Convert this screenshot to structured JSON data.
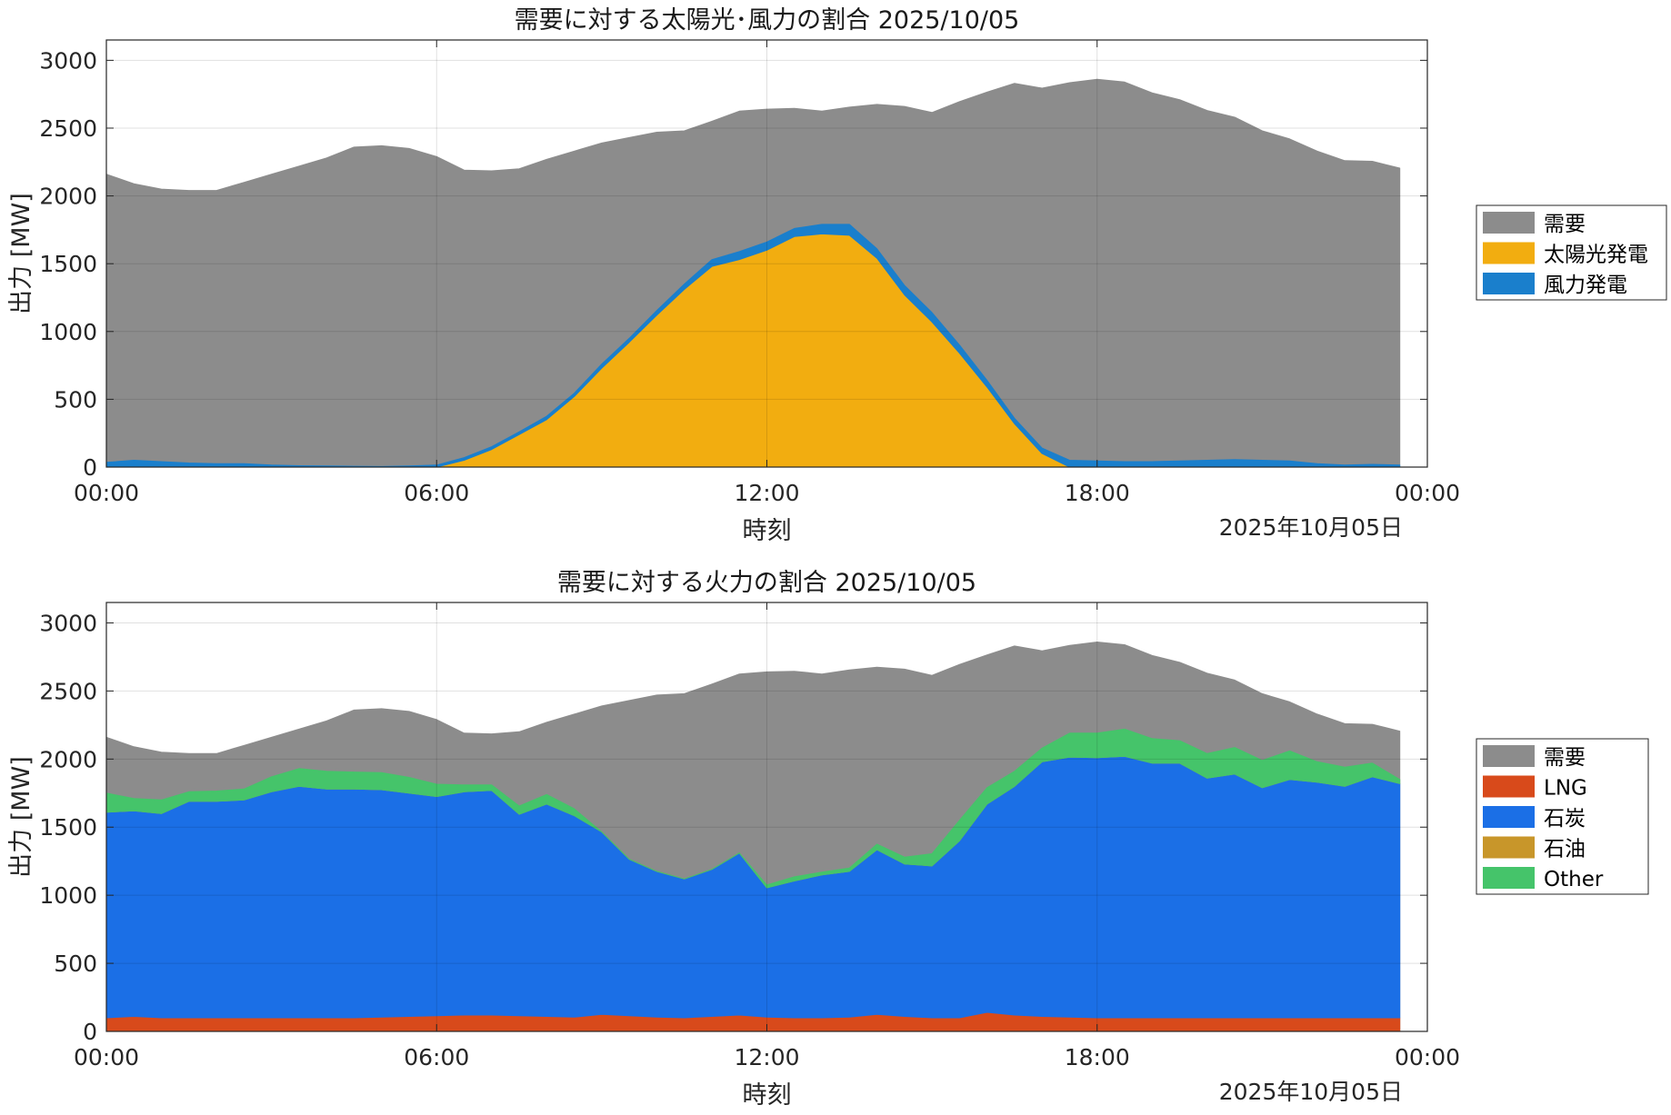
{
  "chart_data": [
    {
      "type": "area",
      "title": "需要に対する太陽光･風力の割合 2025/10/05",
      "xlabel": "時刻",
      "x_date_label": "2025年10月05日",
      "ylabel": "出力 [MW]",
      "ylim": [
        0,
        3150
      ],
      "yticks": [
        0,
        500,
        1000,
        1500,
        2000,
        2500,
        3000
      ],
      "xlim_hours": [
        0,
        24
      ],
      "xticks": [
        "00:00",
        "06:00",
        "12:00",
        "18:00",
        "00:00"
      ],
      "grid": true,
      "legend_position": "right",
      "x": [
        "00:00",
        "00:30",
        "01:00",
        "01:30",
        "02:00",
        "02:30",
        "03:00",
        "03:30",
        "04:00",
        "04:30",
        "05:00",
        "05:30",
        "06:00",
        "06:30",
        "07:00",
        "07:30",
        "08:00",
        "08:30",
        "09:00",
        "09:30",
        "10:00",
        "10:30",
        "11:00",
        "11:30",
        "12:00",
        "12:30",
        "13:00",
        "13:30",
        "14:00",
        "14:30",
        "15:00",
        "15:30",
        "16:00",
        "16:30",
        "17:00",
        "17:30",
        "18:00",
        "18:30",
        "19:00",
        "19:30",
        "20:00",
        "20:30",
        "21:00",
        "21:30",
        "22:00",
        "22:30",
        "23:00",
        "23:30"
      ],
      "series": [
        {
          "name": "需要",
          "color": "#8c8c8c",
          "mode": "overlay",
          "values": [
            2160,
            2090,
            2050,
            2040,
            2040,
            2100,
            2160,
            2220,
            2280,
            2360,
            2370,
            2350,
            2290,
            2190,
            2185,
            2200,
            2270,
            2330,
            2390,
            2430,
            2470,
            2480,
            2550,
            2625,
            2640,
            2645,
            2625,
            2655,
            2675,
            2660,
            2615,
            2695,
            2765,
            2830,
            2795,
            2835,
            2860,
            2840,
            2760,
            2710,
            2630,
            2580,
            2480,
            2420,
            2330,
            2260,
            2255,
            2205
          ]
        },
        {
          "name": "太陽光発電",
          "color": "#f2ad10",
          "mode": "stack",
          "values": [
            0,
            0,
            0,
            0,
            0,
            0,
            0,
            0,
            0,
            0,
            0,
            0,
            0,
            50,
            130,
            240,
            350,
            520,
            730,
            920,
            1120,
            1310,
            1480,
            1530,
            1600,
            1700,
            1720,
            1710,
            1540,
            1270,
            1070,
            840,
            590,
            320,
            100,
            0,
            0,
            0,
            0,
            0,
            0,
            0,
            0,
            0,
            0,
            0,
            0,
            0
          ]
        },
        {
          "name": "風力発電",
          "color": "#1a7fcc",
          "mode": "stack",
          "values": [
            35,
            50,
            40,
            30,
            25,
            25,
            15,
            10,
            8,
            6,
            4,
            8,
            15,
            20,
            20,
            20,
            25,
            25,
            30,
            30,
            35,
            40,
            50,
            60,
            60,
            60,
            70,
            80,
            70,
            70,
            70,
            60,
            50,
            40,
            40,
            50,
            45,
            40,
            40,
            45,
            50,
            55,
            50,
            45,
            25,
            15,
            20,
            15
          ]
        }
      ]
    },
    {
      "type": "area",
      "title": "需要に対する火力の割合 2025/10/05",
      "xlabel": "時刻",
      "x_date_label": "2025年10月05日",
      "ylabel": "出力 [MW]",
      "ylim": [
        0,
        3150
      ],
      "yticks": [
        0,
        500,
        1000,
        1500,
        2000,
        2500,
        3000
      ],
      "xlim_hours": [
        0,
        24
      ],
      "xticks": [
        "00:00",
        "06:00",
        "12:00",
        "18:00",
        "00:00"
      ],
      "grid": true,
      "legend_position": "right",
      "x": [
        "00:00",
        "00:30",
        "01:00",
        "01:30",
        "02:00",
        "02:30",
        "03:00",
        "03:30",
        "04:00",
        "04:30",
        "05:00",
        "05:30",
        "06:00",
        "06:30",
        "07:00",
        "07:30",
        "08:00",
        "08:30",
        "09:00",
        "09:30",
        "10:00",
        "10:30",
        "11:00",
        "11:30",
        "12:00",
        "12:30",
        "13:00",
        "13:30",
        "14:00",
        "14:30",
        "15:00",
        "15:30",
        "16:00",
        "16:30",
        "17:00",
        "17:30",
        "18:00",
        "18:30",
        "19:00",
        "19:30",
        "20:00",
        "20:30",
        "21:00",
        "21:30",
        "22:00",
        "22:30",
        "23:00",
        "23:30"
      ],
      "series": [
        {
          "name": "需要",
          "color": "#8c8c8c",
          "mode": "overlay",
          "values": [
            2160,
            2090,
            2050,
            2040,
            2040,
            2100,
            2160,
            2220,
            2280,
            2360,
            2370,
            2350,
            2290,
            2190,
            2185,
            2200,
            2270,
            2330,
            2390,
            2430,
            2470,
            2480,
            2550,
            2625,
            2640,
            2645,
            2625,
            2655,
            2675,
            2660,
            2615,
            2695,
            2765,
            2830,
            2795,
            2835,
            2860,
            2840,
            2760,
            2710,
            2630,
            2580,
            2480,
            2420,
            2330,
            2260,
            2255,
            2205
          ]
        },
        {
          "name": "LNG",
          "color": "#d84a1b",
          "mode": "stack",
          "values": [
            100,
            110,
            100,
            100,
            100,
            100,
            100,
            100,
            100,
            100,
            105,
            110,
            115,
            120,
            120,
            115,
            110,
            105,
            125,
            115,
            105,
            100,
            110,
            120,
            105,
            100,
            100,
            105,
            125,
            110,
            100,
            100,
            140,
            120,
            110,
            105,
            100,
            100,
            100,
            100,
            100,
            100,
            100,
            100,
            100,
            100,
            100,
            100
          ]
        },
        {
          "name": "石炭",
          "color": "#1b6fe6",
          "mode": "stack",
          "values": [
            1510,
            1510,
            1500,
            1590,
            1590,
            1600,
            1660,
            1700,
            1680,
            1680,
            1670,
            1640,
            1610,
            1640,
            1650,
            1480,
            1560,
            1480,
            1340,
            1150,
            1070,
            1020,
            1080,
            1190,
            950,
            1005,
            1050,
            1070,
            1210,
            1120,
            1115,
            1300,
            1530,
            1680,
            1870,
            1910,
            1910,
            1920,
            1870,
            1870,
            1760,
            1790,
            1690,
            1750,
            1730,
            1700,
            1770,
            1720
          ]
        },
        {
          "name": "石油",
          "color": "#c8962a",
          "mode": "stack",
          "values": [
            0,
            0,
            0,
            0,
            0,
            0,
            0,
            0,
            0,
            0,
            0,
            0,
            0,
            0,
            0,
            0,
            0,
            0,
            0,
            0,
            0,
            0,
            0,
            0,
            0,
            0,
            0,
            0,
            0,
            0,
            0,
            0,
            0,
            0,
            0,
            0,
            0,
            0,
            0,
            0,
            0,
            0,
            0,
            0,
            0,
            0,
            0,
            0
          ]
        },
        {
          "name": "Other",
          "color": "#45c46a",
          "mode": "stack",
          "values": [
            140,
            90,
            100,
            70,
            75,
            80,
            110,
            130,
            130,
            125,
            125,
            115,
            90,
            50,
            40,
            60,
            70,
            50,
            0,
            0,
            0,
            0,
            0,
            0,
            20,
            30,
            20,
            25,
            40,
            50,
            90,
            150,
            120,
            110,
            100,
            175,
            180,
            200,
            180,
            165,
            180,
            195,
            200,
            210,
            150,
            140,
            100,
            30
          ]
        }
      ]
    }
  ]
}
